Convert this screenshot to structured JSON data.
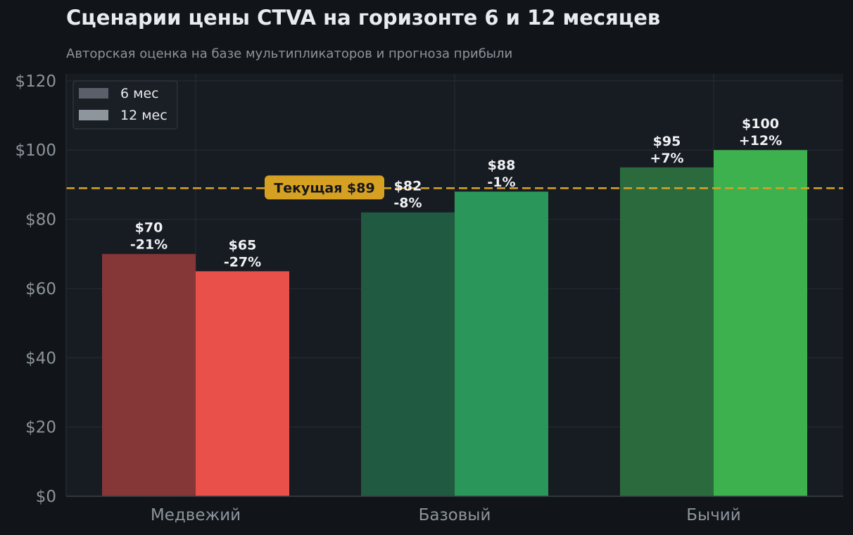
{
  "colors": {
    "background": "#111519",
    "plot_background": "#171b22",
    "grid": "#262b33",
    "axis_text": "#8d949c",
    "label_text": "#f0f2f4",
    "current_line": "#d6a022",
    "current_badge_text": "#14171b"
  },
  "chart_data": {
    "type": "bar",
    "title": "Сценарии цены CTVA на горизонте 6 и 12 месяцев",
    "subtitle": "Авторская оценка на базе мультипликаторов и прогноза прибыли",
    "categories": [
      "Медвежий",
      "Базовый",
      "Бычий"
    ],
    "series": [
      {
        "name": "6 мес",
        "legend_color": "#5a5f6a",
        "values": [
          70,
          82,
          95
        ],
        "labels": [
          "$70",
          "$82",
          "$95"
        ],
        "change_labels": [
          "-21%",
          "-8%",
          "+7%"
        ],
        "colors": [
          "#853737",
          "#205a41",
          "#2a6a3c"
        ]
      },
      {
        "name": "12 мес",
        "legend_color": "#8e959d",
        "values": [
          65,
          88,
          100
        ],
        "labels": [
          "$65",
          "$88",
          "$100"
        ],
        "change_labels": [
          "-27%",
          "-1%",
          "+12%"
        ],
        "colors": [
          "#e9504a",
          "#2b9659",
          "#3db14e"
        ]
      }
    ],
    "reference_line": {
      "value": 89,
      "label": "Текущая $89"
    },
    "y_ticks": [
      0,
      20,
      40,
      60,
      80,
      100,
      120
    ],
    "y_tick_labels": [
      "$0",
      "$20",
      "$40",
      "$60",
      "$80",
      "$100",
      "$120"
    ],
    "ylim": [
      0,
      122
    ],
    "xlabel": "",
    "ylabel": "",
    "grid": true,
    "legend_position": "top-left"
  }
}
